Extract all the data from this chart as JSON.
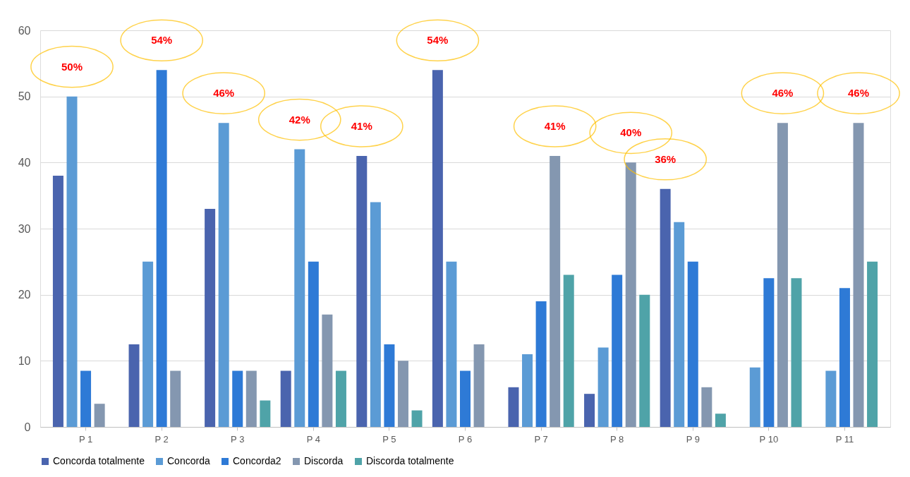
{
  "chart_data": {
    "type": "bar",
    "categories": [
      "P 1",
      "P 2",
      "P 3",
      "P 4",
      "P 5",
      "P 6",
      "P 7",
      "P 8",
      "P 9",
      "P 10",
      "P 11"
    ],
    "series": [
      {
        "name": "Concorda totalmente",
        "color": "#4a64ae",
        "values": [
          38,
          12.5,
          33,
          8.5,
          41,
          54,
          6,
          5,
          36,
          0,
          0
        ]
      },
      {
        "name": "Concorda",
        "color": "#5b9bd5",
        "values": [
          50,
          25,
          46,
          42,
          34,
          25,
          11,
          12,
          31,
          9,
          8.5
        ]
      },
      {
        "name": "Concorda2",
        "color": "#2e7ad6",
        "values": [
          8.5,
          54,
          8.5,
          25,
          12.5,
          8.5,
          19,
          23,
          25,
          22.5,
          21
        ]
      },
      {
        "name": "Discorda",
        "color": "#8497b0",
        "values": [
          3.5,
          8.5,
          8.5,
          17,
          10,
          12.5,
          41,
          40,
          6,
          46,
          46
        ]
      },
      {
        "name": "Discorda totalmente",
        "color": "#4fa3a8",
        "values": [
          0,
          0,
          4,
          8.5,
          2.5,
          0,
          23,
          20,
          2,
          22.5,
          25
        ]
      }
    ],
    "ylim": [
      0,
      60
    ],
    "yticks": [
      0,
      10,
      20,
      30,
      40,
      50,
      60
    ],
    "grid": "y",
    "legend": "bottom",
    "annotations": [
      "50%",
      "54%",
      "46%",
      "42%",
      "41%",
      "54%",
      "41%",
      "40%",
      "36%",
      "46%",
      "46%"
    ]
  }
}
